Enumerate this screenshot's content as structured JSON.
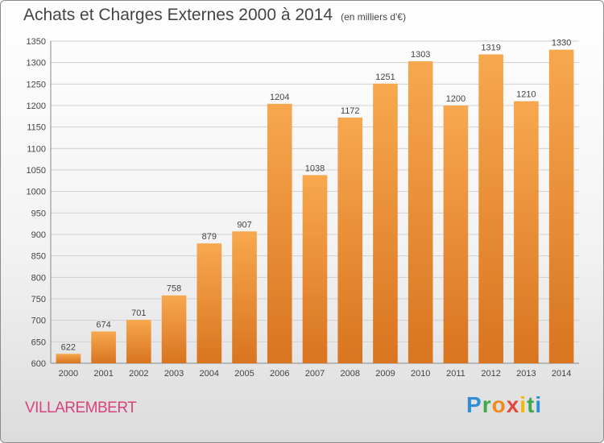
{
  "header": {
    "title": "Achats et Charges Externes 2000 à 2014",
    "subtitle": "(en milliers d'€)"
  },
  "commune": "VILLAREMBERT",
  "logo": {
    "letters": [
      "P",
      "r",
      "o",
      "x",
      "i",
      "t",
      "i"
    ]
  },
  "chart_data": {
    "type": "bar",
    "title": "Achats et Charges Externes 2000 à 2014",
    "subtitle": "(en milliers d'€)",
    "categories": [
      "2000",
      "2001",
      "2002",
      "2003",
      "2004",
      "2005",
      "2006",
      "2007",
      "2008",
      "2009",
      "2010",
      "2011",
      "2012",
      "2013",
      "2014"
    ],
    "values": [
      622,
      674,
      701,
      758,
      879,
      907,
      1204,
      1038,
      1172,
      1251,
      1303,
      1200,
      1319,
      1210,
      1330
    ],
    "ylim": [
      600,
      1350
    ],
    "yticks": [
      600,
      650,
      700,
      750,
      800,
      850,
      900,
      950,
      1000,
      1050,
      1100,
      1150,
      1200,
      1250,
      1300,
      1350
    ],
    "grid": true,
    "colors": {
      "bar_light": "#f7a84f",
      "bar_dark": "#d9741f",
      "grid": "#d0d0d0",
      "title": "#444444",
      "commune": "#d9437c"
    }
  }
}
